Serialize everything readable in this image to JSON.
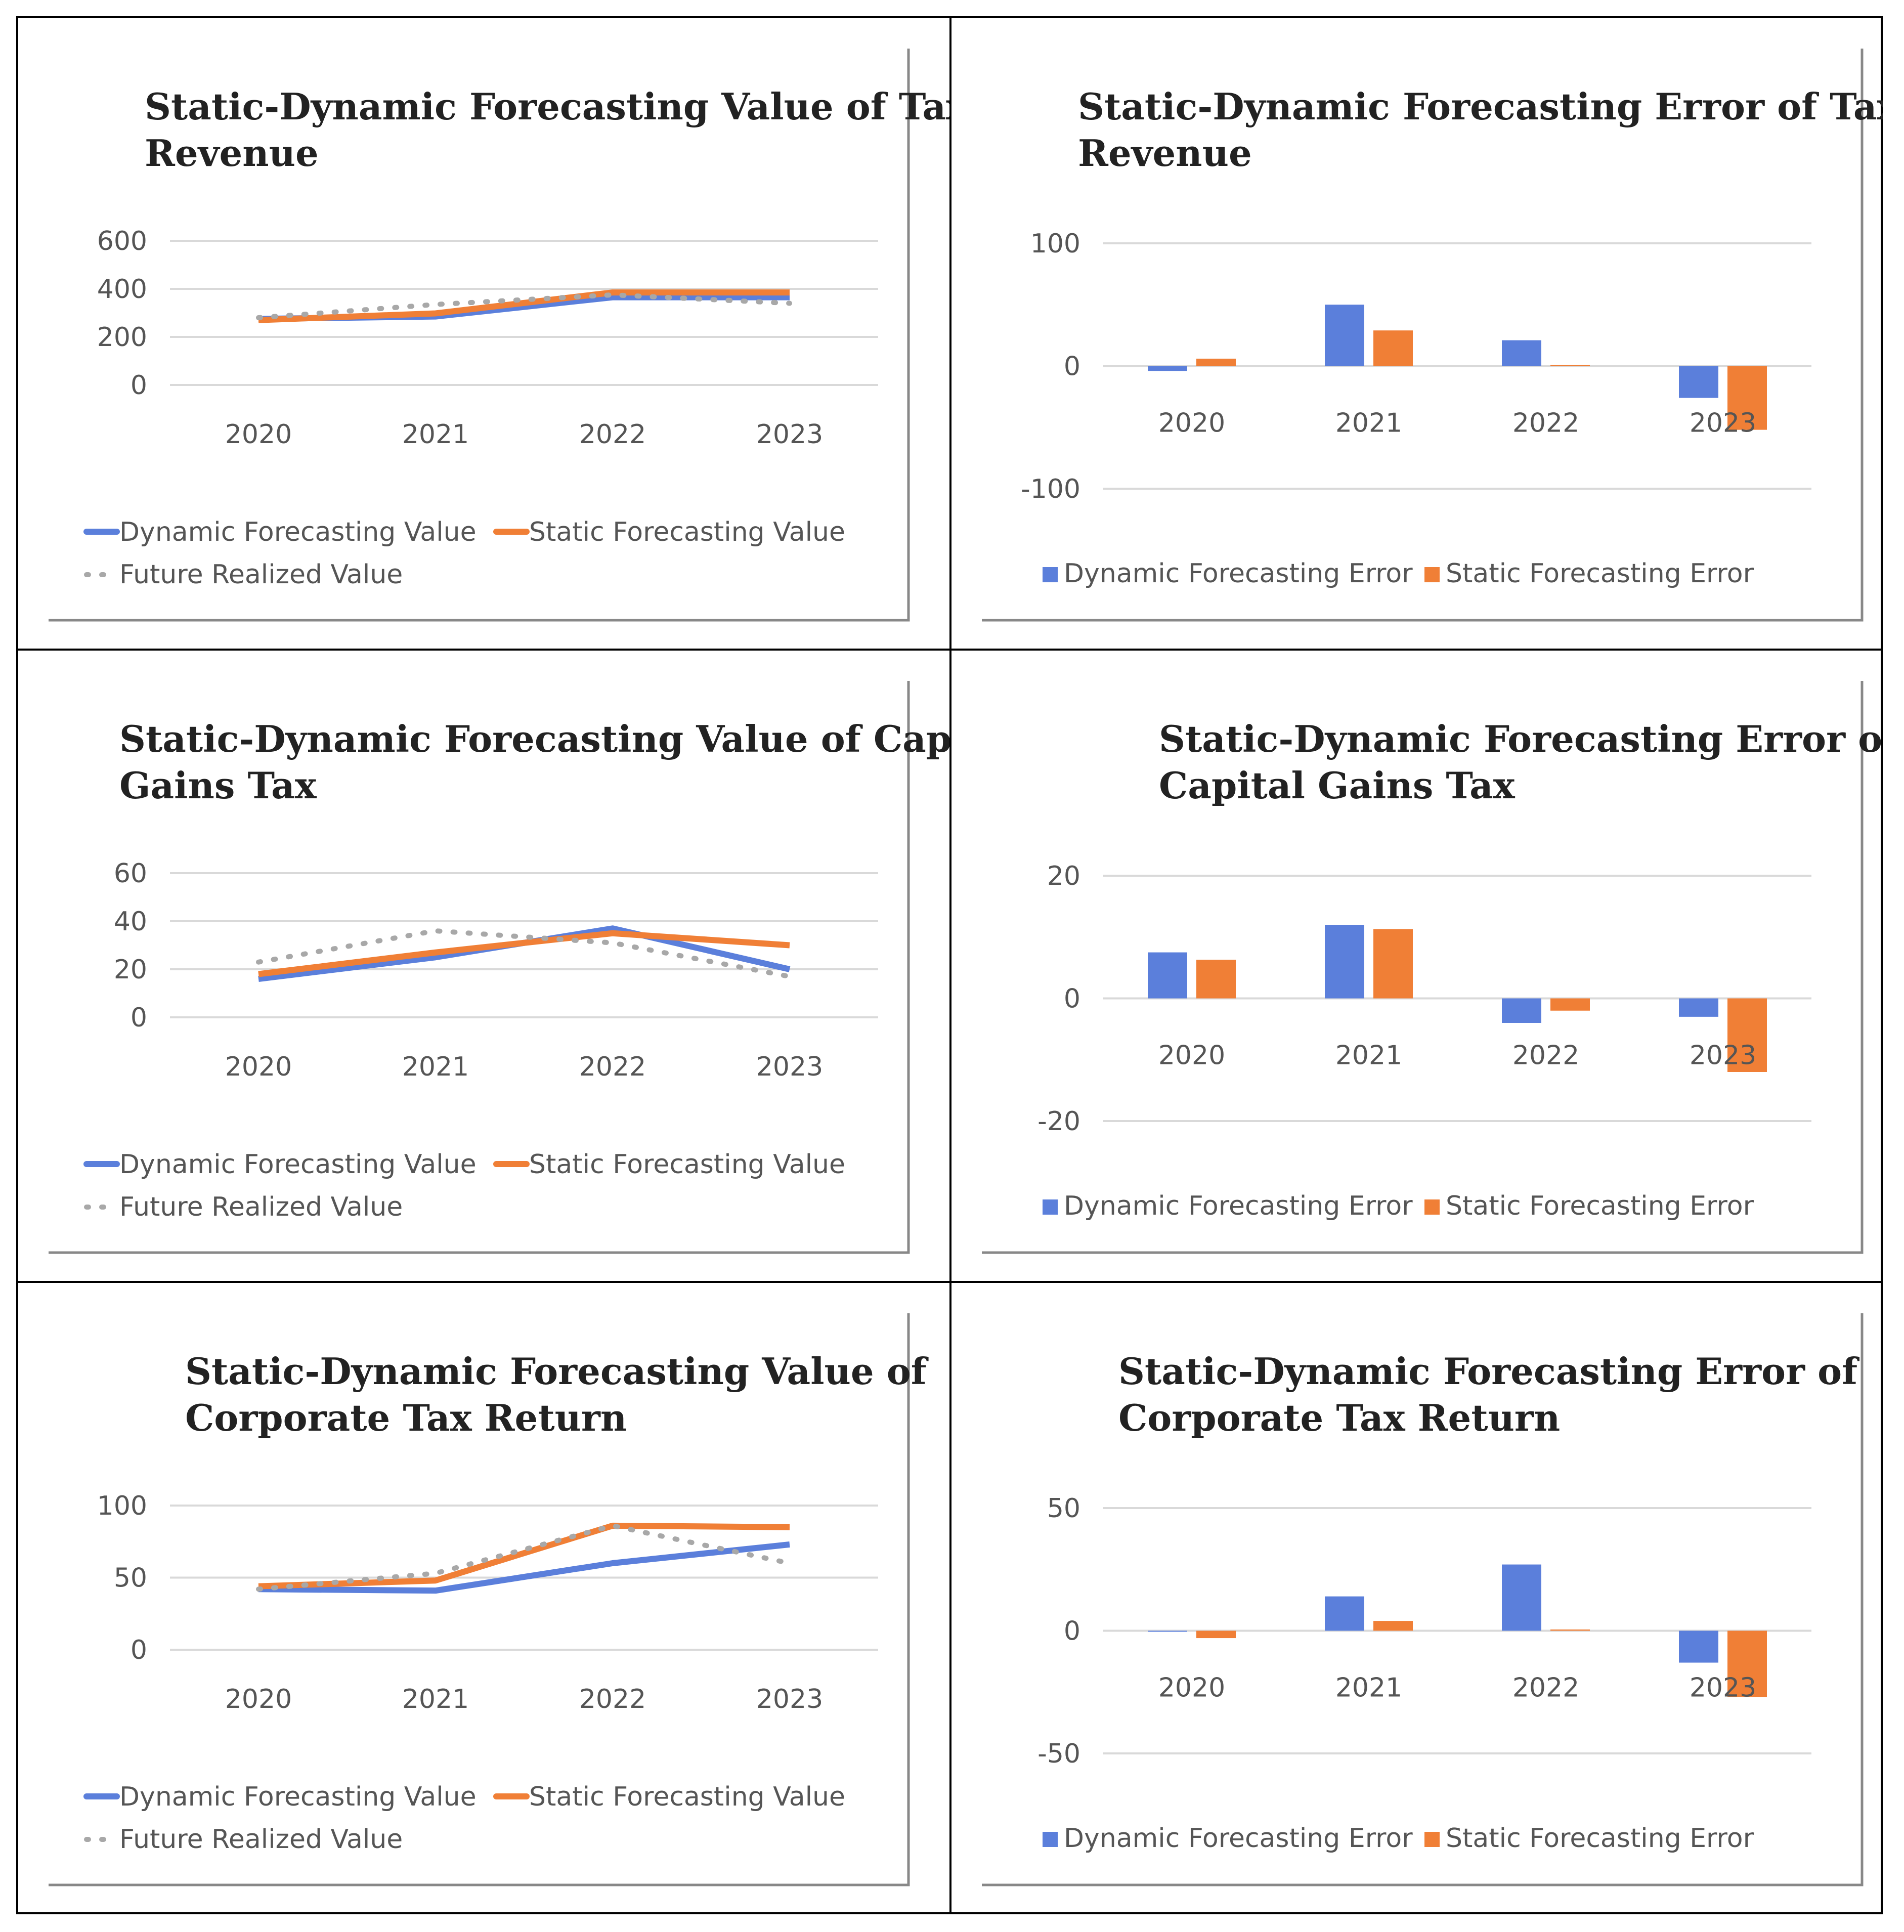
{
  "colors": {
    "dynamic": "#5b7fdb",
    "static": "#f07f36",
    "realized": "#a8a8a8",
    "grid": "#d9d9d9",
    "frame": "#888888"
  },
  "legend": {
    "dynamic_value": "Dynamic Forecasting Value",
    "static_value": "Static Forecasting Value",
    "realized_value": "Future Realized Value",
    "dynamic_error": "Dynamic Forecasting Error",
    "static_error": "Static Forecasting Error"
  },
  "chart_data": [
    {
      "id": "tax-revenue-value",
      "type": "line",
      "title": [
        "Static-Dynamic Forecasting Value of Tax",
        "Revenue"
      ],
      "categories": [
        "2020",
        "2021",
        "2022",
        "2023"
      ],
      "ylim": [
        0,
        600
      ],
      "yticks": [
        0,
        200,
        400,
        600
      ],
      "series": [
        {
          "name": "Dynamic Forecasting Value",
          "values": [
            275,
            285,
            365,
            365
          ]
        },
        {
          "name": "Static Forecasting Value",
          "values": [
            270,
            298,
            385,
            385
          ]
        },
        {
          "name": "Future Realized Value",
          "values": [
            280,
            335,
            375,
            340
          ]
        }
      ]
    },
    {
      "id": "tax-revenue-error",
      "type": "bar",
      "title": [
        "Static-Dynamic Forecasting Error of Tax",
        "Revenue"
      ],
      "categories": [
        "2020",
        "2021",
        "2022",
        "2023"
      ],
      "ylim": [
        -100,
        100
      ],
      "yticks": [
        -100,
        0,
        100
      ],
      "series": [
        {
          "name": "Dynamic Forecasting Error",
          "values": [
            -4,
            50,
            21,
            -26
          ]
        },
        {
          "name": "Static Forecasting Error",
          "values": [
            6,
            29,
            1,
            -52
          ]
        }
      ]
    },
    {
      "id": "capital-gains-value",
      "type": "line",
      "title": [
        "Static-Dynamic Forecasting Value of Capital",
        "Gains Tax"
      ],
      "categories": [
        "2020",
        "2021",
        "2022",
        "2023"
      ],
      "ylim": [
        0,
        60
      ],
      "yticks": [
        0,
        20,
        40,
        60
      ],
      "series": [
        {
          "name": "Dynamic Forecasting Value",
          "values": [
            16,
            25,
            37,
            20
          ]
        },
        {
          "name": "Static Forecasting Value",
          "values": [
            18,
            27,
            35,
            30
          ]
        },
        {
          "name": "Future Realized Value",
          "values": [
            23,
            36,
            31,
            17
          ]
        }
      ]
    },
    {
      "id": "capital-gains-error",
      "type": "bar",
      "title": [
        "Static-Dynamic Forecasting Error of",
        "Capital Gains Tax"
      ],
      "categories": [
        "2020",
        "2021",
        "2022",
        "2023"
      ],
      "ylim": [
        -20,
        20
      ],
      "yticks": [
        -20,
        0,
        20
      ],
      "series": [
        {
          "name": "Dynamic Forecasting Error",
          "values": [
            7.5,
            12,
            -4,
            -3
          ]
        },
        {
          "name": "Static Forecasting Error",
          "values": [
            6.3,
            11.3,
            -2,
            -12
          ]
        }
      ]
    },
    {
      "id": "corporate-tax-value",
      "type": "line",
      "title": [
        "Static-Dynamic Forecasting Value of",
        "Corporate Tax Return"
      ],
      "categories": [
        "2020",
        "2021",
        "2022",
        "2023"
      ],
      "ylim": [
        0,
        100
      ],
      "yticks": [
        0,
        50,
        100
      ],
      "series": [
        {
          "name": "Dynamic Forecasting Value",
          "values": [
            42,
            41,
            60,
            73
          ]
        },
        {
          "name": "Static Forecasting Value",
          "values": [
            44,
            48,
            86,
            85
          ]
        },
        {
          "name": "Future Realized Value",
          "values": [
            42,
            53,
            86,
            60
          ]
        }
      ]
    },
    {
      "id": "corporate-tax-error",
      "type": "bar",
      "title": [
        "Static-Dynamic Forecasting Error of",
        "Corporate Tax Return"
      ],
      "categories": [
        "2020",
        "2021",
        "2022",
        "2023"
      ],
      "ylim": [
        -50,
        50
      ],
      "yticks": [
        -50,
        0,
        50
      ],
      "series": [
        {
          "name": "Dynamic Forecasting Error",
          "values": [
            0,
            14,
            27,
            -13
          ]
        },
        {
          "name": "Static Forecasting Error",
          "values": [
            -3,
            4,
            0.5,
            -27
          ]
        }
      ]
    }
  ]
}
